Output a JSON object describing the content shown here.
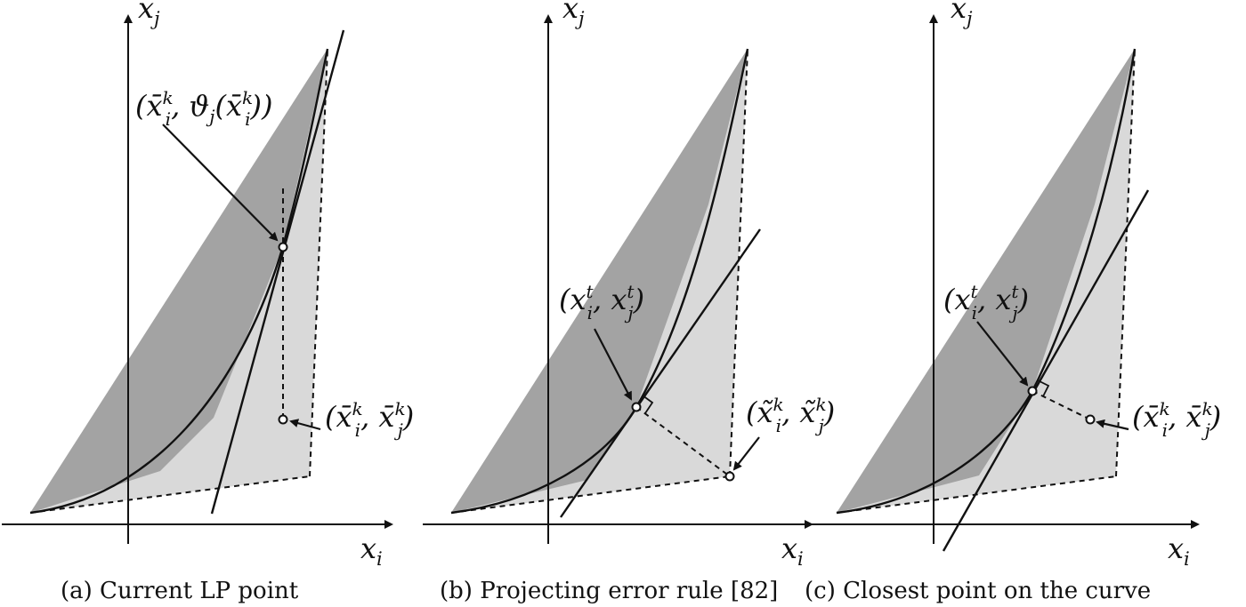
{
  "panels": [
    {
      "id": "a",
      "caption": "(a) Current LP point",
      "axis_x_label": "x_i",
      "axis_y_label": "x_j",
      "annotations": [
        "(x̄_i^k, ϑ_j(x̄_i^k))",
        "(x̄_i^k, x̄_j^k)"
      ]
    },
    {
      "id": "b",
      "caption": "(b) Projecting error rule [82]",
      "axis_x_label": "x_i",
      "axis_y_label": "x_j",
      "annotations": [
        "(x_i^t, x_j^t)",
        "(x̃_i^k, x̃_j^k)"
      ]
    },
    {
      "id": "c",
      "caption": "(c) Closest point on the curve",
      "axis_x_label": "x_i",
      "axis_y_label": "x_j",
      "annotations": [
        "(x_i^t, x_j^t)",
        "(x̄_i^k, x̄_j^k)"
      ]
    }
  ],
  "colors": {
    "dark_region": "#a3a3a3",
    "light_region": "#d9d9d9",
    "ink": "#111111"
  }
}
